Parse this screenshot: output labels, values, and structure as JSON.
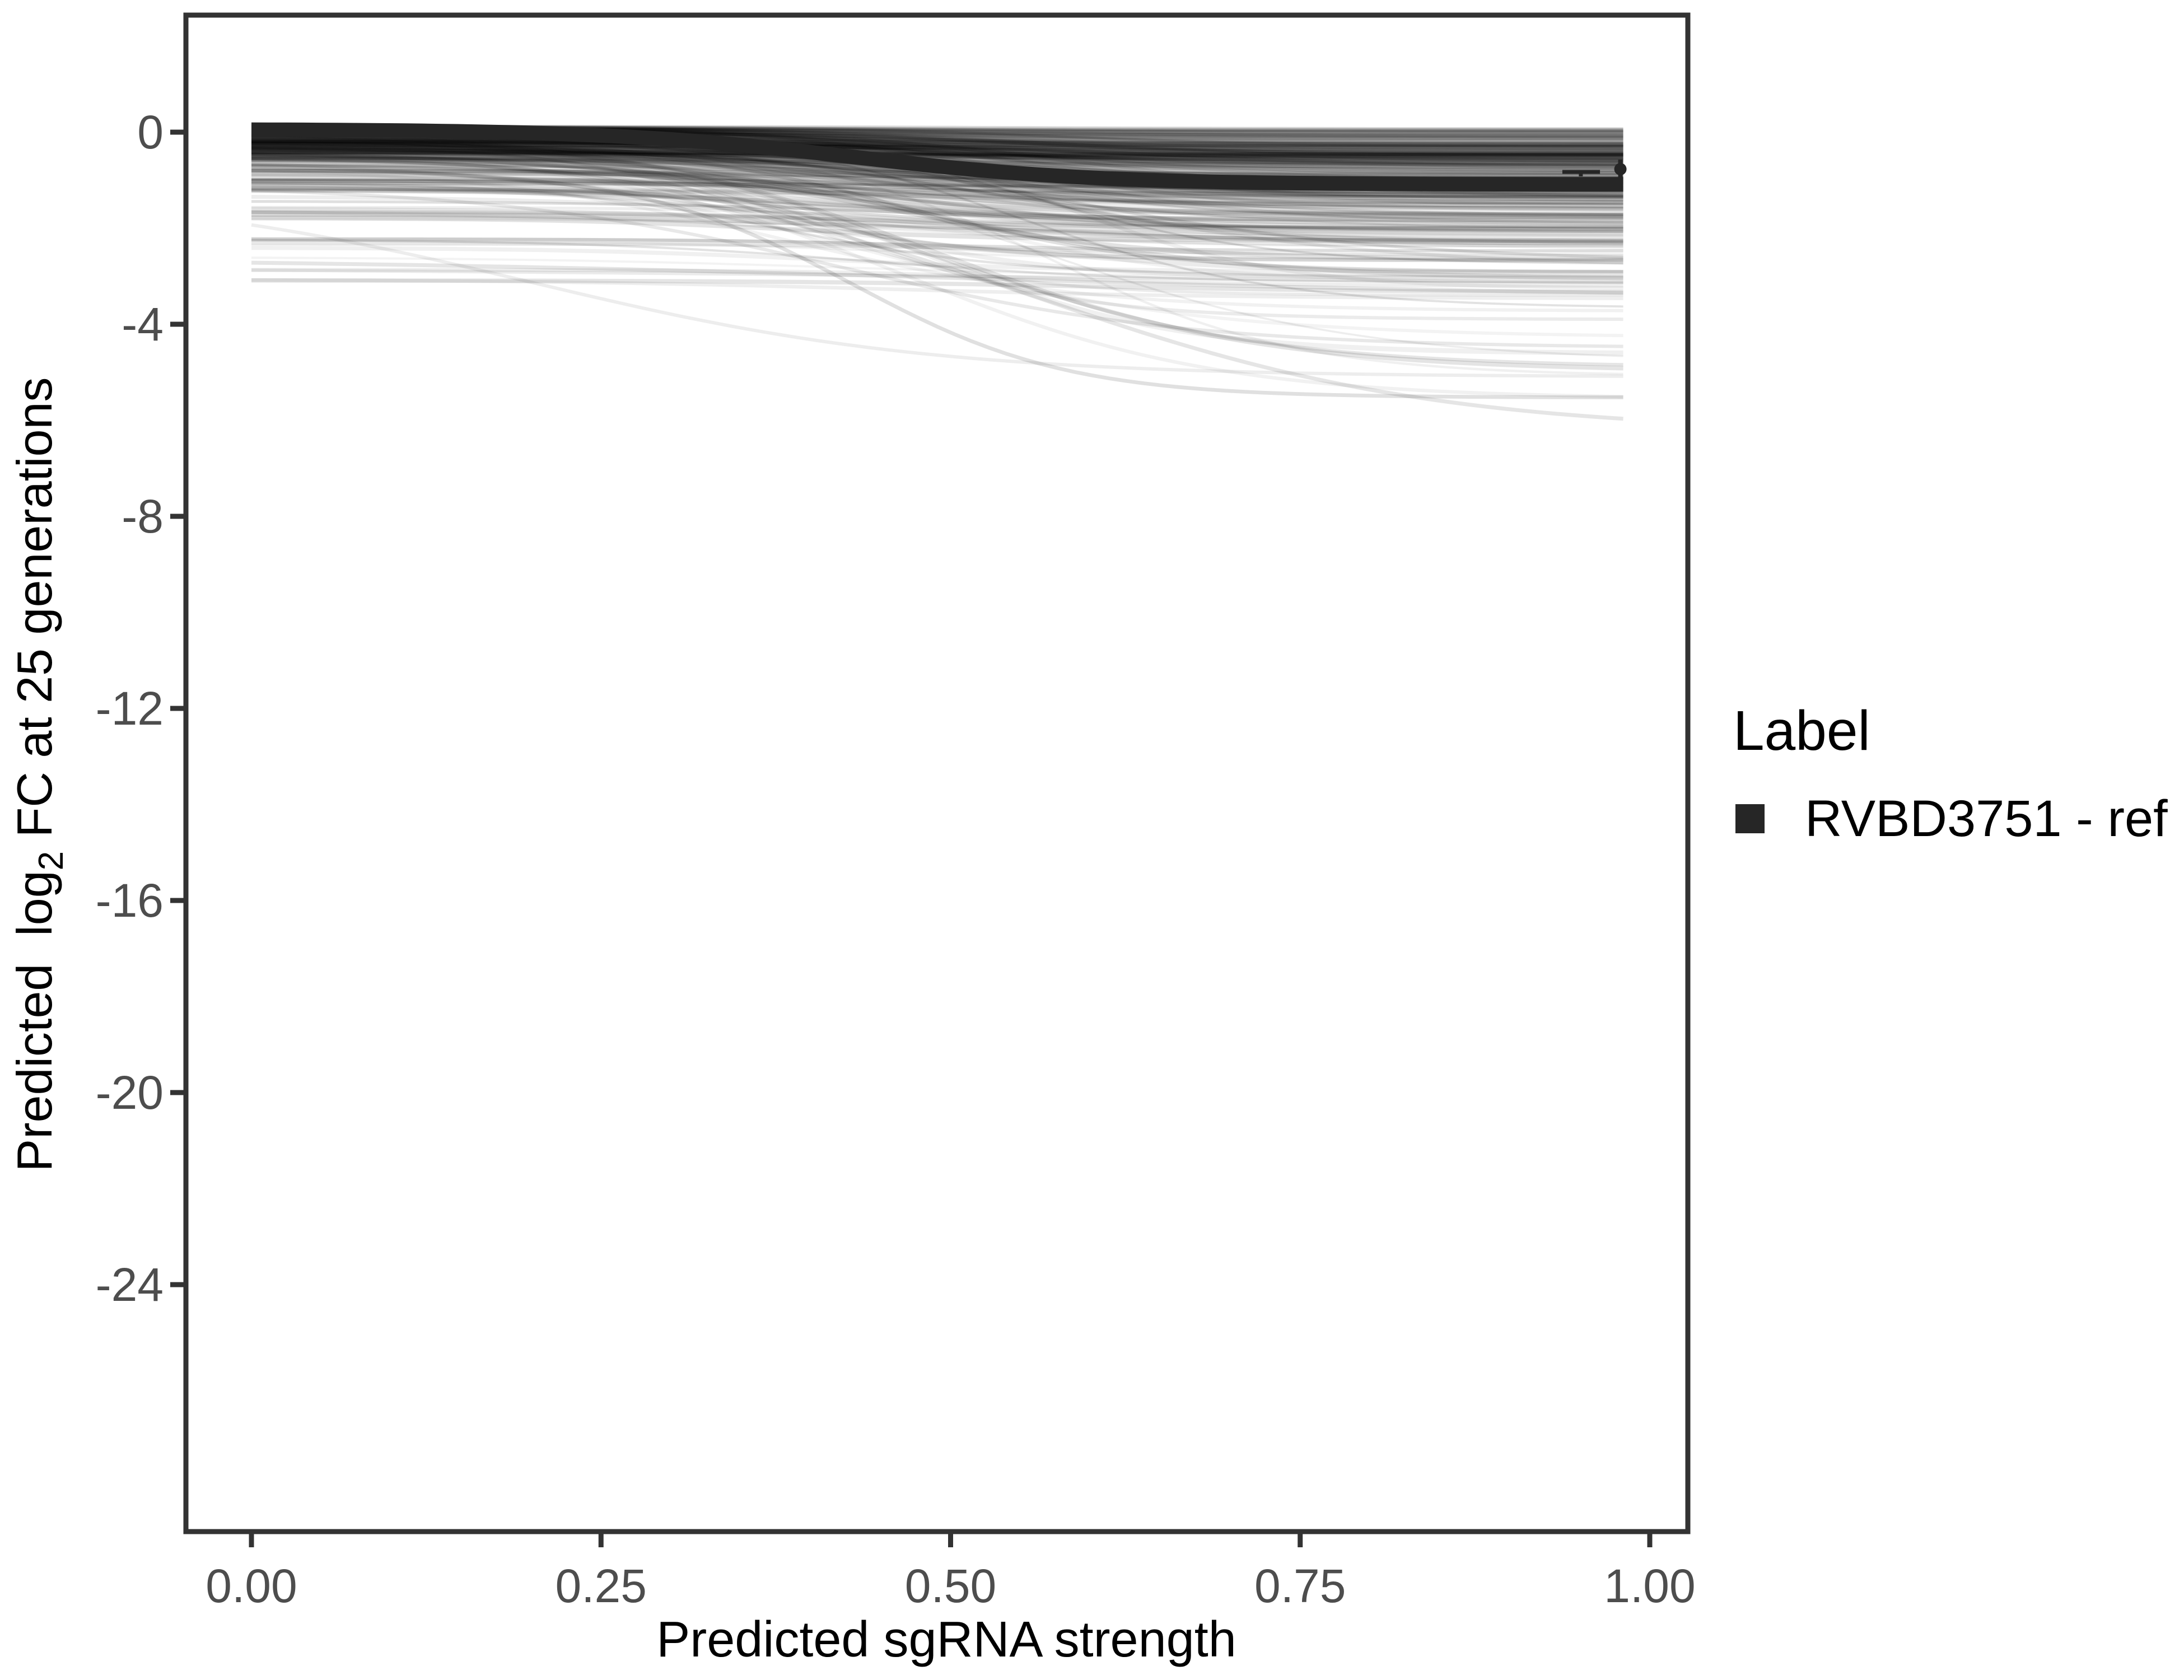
{
  "colors": {
    "background": "#ffffff",
    "panel_border": "#333333",
    "tick_mark": "#333333",
    "tick_label": "#4d4d4d",
    "axis_title": "#000000",
    "ref_line": "#262626",
    "spaghetti": "#000000"
  },
  "chart_data": {
    "type": "line",
    "title": "",
    "xlabel": "Predicted sgRNA strength",
    "ylabel": "Predicted log2 FC at 25 generations",
    "ylabel_parts": {
      "prefix": "Predicted  log",
      "sub": "2",
      "suffix": " FC at 25 generations"
    },
    "xlim": [
      -0.047,
      1.027
    ],
    "ylim": [
      -29.1,
      2.44
    ],
    "grid": "off",
    "x_ticks": {
      "values": [
        0,
        0.25,
        0.5,
        0.75,
        1.0
      ],
      "labels": [
        "0.00",
        "0.25",
        "0.50",
        "0.75",
        "1.00"
      ]
    },
    "y_ticks": {
      "values": [
        0,
        -4,
        -8,
        -12,
        -16,
        -20,
        -24
      ],
      "labels": [
        "0",
        "-4",
        "-8",
        "-12",
        "-16",
        "-20",
        "-24"
      ]
    },
    "legend": {
      "title": "Label",
      "position": "right",
      "entries": [
        {
          "label": "RVBD3751 - ref",
          "swatch": "#262626"
        }
      ]
    },
    "series": [
      {
        "name": "RVBD3751 - ref",
        "type": "sigmoid-line",
        "color": "#262626",
        "stroke_width": 26,
        "sigmoid": {
          "v0": 0.06,
          "v1": -1.09,
          "mid": 0.43,
          "k": 11.5
        },
        "x": [
          0,
          0.05,
          0.1,
          0.15,
          0.2,
          0.25,
          0.3,
          0.35,
          0.4,
          0.45,
          0.5,
          0.55,
          0.6,
          0.65,
          0.7,
          0.75,
          0.8,
          0.85,
          0.9,
          0.95,
          0.98
        ],
        "y": [
          0.05,
          0.05,
          0.03,
          0.02,
          -0.02,
          -0.07,
          -0.15,
          -0.27,
          -0.42,
          -0.58,
          -0.73,
          -0.86,
          -0.95,
          -1.01,
          -1.04,
          -1.06,
          -1.07,
          -1.08,
          -1.08,
          -1.09,
          -1.09
        ]
      }
    ],
    "point_marker": {
      "x": 0.979,
      "y": -0.77,
      "radius": 11,
      "whisker_y1": -0.57,
      "whisker_y2": -1.0
    },
    "range_marker": {
      "x1": 0.9375,
      "x2": 0.9644,
      "y": -0.828,
      "cap_x": 0.9507,
      "cap_y2": -0.921
    },
    "background_ensemble": {
      "description": "unlabeled gray sgRNA prediction curves",
      "count": 320,
      "seed": 20240817,
      "x_max": 0.981,
      "start_mix": [
        [
          0.76,
          -0.62,
          0.12,
          1.5
        ],
        [
          0.88,
          -1.3,
          -0.62,
          1
        ],
        [
          0.94,
          -2.6,
          -1.3,
          1
        ],
        [
          0.96,
          -3.3,
          -2.6,
          1
        ],
        [
          1.0,
          -0.62,
          0.12,
          1
        ]
      ],
      "drop_mix": [
        [
          0.68,
          0.05,
          0.95,
          2
        ],
        [
          0.9,
          0.7,
          1.7,
          1
        ],
        [
          0.97,
          1.6,
          3.4,
          1
        ],
        [
          1.0,
          3.2,
          5.7,
          1
        ]
      ],
      "low_start_drop": [
        0.2,
        1.0
      ],
      "mid_range": [
        0.34,
        0.6
      ],
      "k_range": [
        7,
        13
      ],
      "v_floor": -6.3,
      "opacity_range": [
        0.04,
        0.13
      ],
      "width_range": [
        3.5,
        9
      ]
    },
    "background_outliers": [
      {
        "v0": -2.62,
        "v1": -3.45,
        "mid": 0.5,
        "k": 4,
        "o": 0.1,
        "w": 7
      },
      {
        "v0": -2.8,
        "v1": -3.2,
        "mid": 0.5,
        "k": 3,
        "o": 0.08,
        "w": 6
      },
      {
        "v0": -0.6,
        "v1": -6.25,
        "mid": 0.56,
        "k": 7,
        "o": 0.1,
        "w": 7
      },
      {
        "v0": -0.5,
        "v1": -4.9,
        "mid": 0.5,
        "k": 9,
        "o": 0.1,
        "w": 6
      },
      {
        "v0": -1.1,
        "v1": -4.5,
        "mid": 0.42,
        "k": 8,
        "o": 0.09,
        "w": 6
      },
      {
        "v0": -0.3,
        "v1": -3.9,
        "mid": 0.42,
        "k": 12,
        "o": 0.08,
        "w": 6
      },
      {
        "v0": -0.25,
        "v1": -3.4,
        "mid": 0.38,
        "k": 13,
        "o": 0.08,
        "w": 5
      },
      {
        "v0": -1.15,
        "v1": -5.1,
        "mid": 0.2,
        "k": 7,
        "o": 0.07,
        "w": 6
      },
      {
        "v0": -1.6,
        "v1": -2.3,
        "mid": 0.45,
        "k": 5,
        "o": 0.08,
        "w": 6
      }
    ]
  }
}
